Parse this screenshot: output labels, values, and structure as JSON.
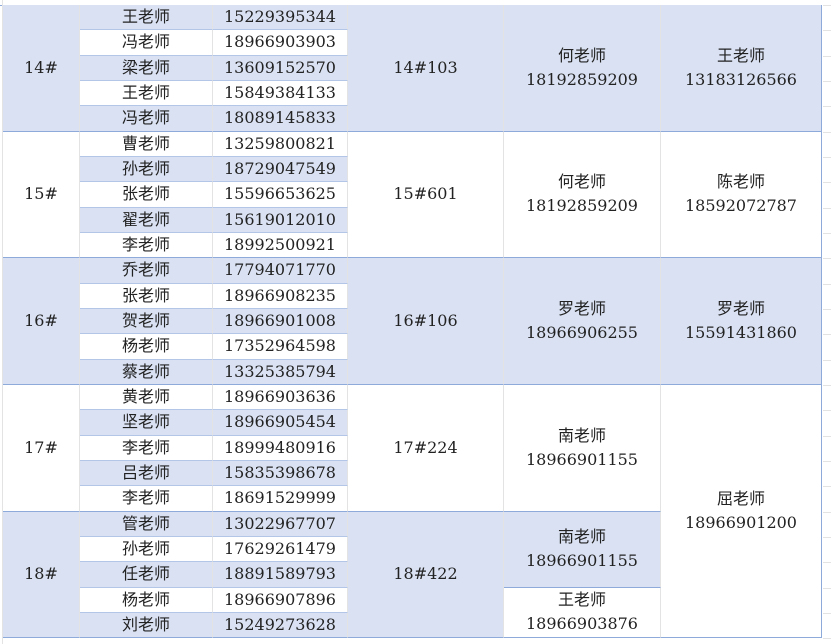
{
  "colors": {
    "band": "#d9e1f2",
    "group_border": "#8eaadb"
  },
  "groups": [
    {
      "building": "14#",
      "room": "14#103",
      "band": "blue",
      "teachers": [
        [
          "王老师",
          "15229395344"
        ],
        [
          "冯老师",
          "18966903903"
        ],
        [
          "梁老师",
          "13609152570"
        ],
        [
          "王老师",
          "15849384133"
        ],
        [
          "冯老师",
          "18089145833"
        ]
      ],
      "contact_a": [
        {
          "name": "何老师",
          "phone": "18192859209"
        }
      ],
      "contact_b": {
        "name": "王老师",
        "phone": "13183126566"
      }
    },
    {
      "building": "15#",
      "room": "15#601",
      "band": "white",
      "teachers": [
        [
          "曹老师",
          "13259800821"
        ],
        [
          "孙老师",
          "18729047549"
        ],
        [
          "张老师",
          "15596653625"
        ],
        [
          "翟老师",
          "15619012010"
        ],
        [
          "李老师",
          "18992500921"
        ]
      ],
      "contact_a": [
        {
          "name": "何老师",
          "phone": "18192859209"
        }
      ],
      "contact_b": {
        "name": "陈老师",
        "phone": "18592072787"
      }
    },
    {
      "building": "16#",
      "room": "16#106",
      "band": "blue",
      "teachers": [
        [
          "乔老师",
          "17794071770"
        ],
        [
          "张老师",
          "18966908235"
        ],
        [
          "贺老师",
          "18966901008"
        ],
        [
          "杨老师",
          "17352964598"
        ],
        [
          "蔡老师",
          "13325385794"
        ]
      ],
      "contact_a": [
        {
          "name": "罗老师",
          "phone": "18966906255"
        }
      ],
      "contact_b": {
        "name": "罗老师",
        "phone": "15591431860"
      }
    },
    {
      "building": "17#",
      "room": "17#224",
      "band": "white",
      "teachers": [
        [
          "黄老师",
          "18966903636"
        ],
        [
          "坚老师",
          "18966905454"
        ],
        [
          "李老师",
          "18999480916"
        ],
        [
          "吕老师",
          "15835398678"
        ],
        [
          "李老师",
          "18691529999"
        ]
      ],
      "contact_a": [
        {
          "name": "南老师",
          "phone": "18966901155"
        }
      ],
      "contact_b": {
        "name": "屈老师",
        "phone": "18966901200"
      }
    },
    {
      "building": "18#",
      "room": "18#422",
      "band": "blue",
      "teachers": [
        [
          "管老师",
          "13022967707"
        ],
        [
          "孙老师",
          "17629261479"
        ],
        [
          "任老师",
          "18891589793"
        ],
        [
          "杨老师",
          "18966907896"
        ],
        [
          "刘老师",
          "15249273628"
        ]
      ],
      "contact_a": [
        {
          "name": "南老师",
          "phone": "18966901155"
        },
        {
          "name": "王老师",
          "phone": "18966903876"
        }
      ],
      "contact_b": null
    }
  ]
}
